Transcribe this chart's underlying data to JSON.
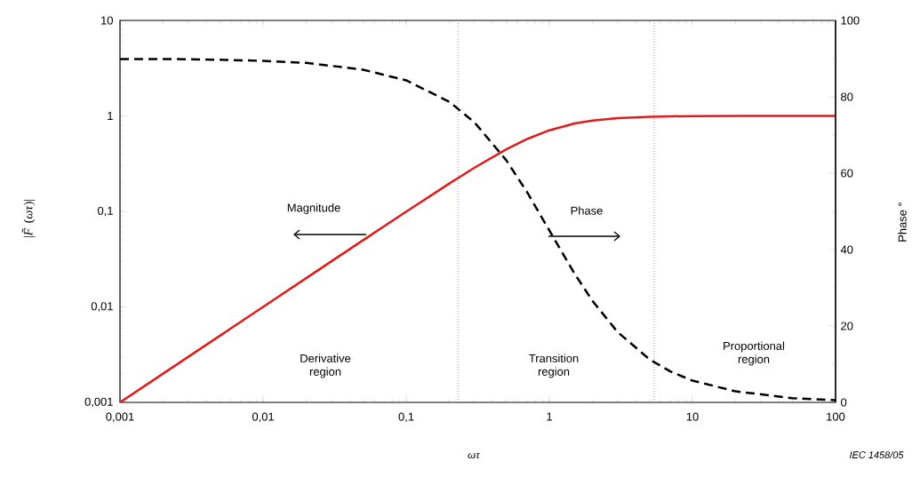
{
  "chart_data": {
    "type": "line",
    "xlabel": "ωτ",
    "ylabel": "|*F̃*(*ωτ*)|",
    "y2label": "Phase °",
    "x": [
      0.001,
      0.002,
      0.005,
      0.01,
      0.02,
      0.05,
      0.1,
      0.2,
      0.3,
      0.5,
      0.7,
      1,
      1.5,
      2,
      3,
      5,
      7,
      10,
      20,
      50,
      100
    ],
    "series": [
      {
        "color": "#e01b1b",
        "line_style": "solid",
        "values": [
          0.001,
          0.002,
          0.005,
          0.01,
          0.02,
          0.05,
          0.0995,
          0.196,
          0.287,
          0.447,
          0.573,
          0.707,
          0.832,
          0.894,
          0.949,
          0.981,
          0.99,
          0.995,
          0.999,
          1,
          1
        ]
      },
      {
        "color": "#000000",
        "line_style": "dashed",
        "axis": "y2",
        "values": [
          89.9,
          89.9,
          89.7,
          89.4,
          88.9,
          87.1,
          84.3,
          78.7,
          73.3,
          63.4,
          55,
          45,
          33.7,
          26.6,
          18.4,
          11.3,
          8.1,
          5.7,
          2.9,
          1.1,
          0.6
        ]
      }
    ],
    "log": "xy",
    "xlim": [
      0.001,
      100
    ],
    "ylim": [
      0.001,
      10
    ],
    "y2lim": [
      0,
      100
    ],
    "xticks": [
      {
        "value": 0.001,
        "label": "0,001"
      },
      {
        "value": 0.01,
        "label": "0,01"
      },
      {
        "value": 0.1,
        "label": "0,1"
      },
      1,
      10,
      100
    ],
    "yticks": [
      {
        "value": 0.001,
        "label": "0,001"
      },
      {
        "value": 0.01,
        "label": "0,01"
      },
      {
        "value": 0.1,
        "label": "0,1"
      },
      1,
      10
    ],
    "y2ticks": [
      0,
      20,
      40,
      60,
      80,
      100
    ],
    "ref_lines": [
      {
        "axis": "x",
        "value": 0.23,
        "color": "#808080",
        "line_style": "dotted"
      },
      {
        "axis": "x",
        "value": 5.4,
        "color": "#808080",
        "line_style": "dotted"
      }
    ],
    "annotations": [
      "Magnitude",
      "Phase",
      "Derivative region",
      "Transition region",
      "Proportional region",
      "IEC  1458/05"
    ],
    "marker": "none",
    "grid": false
  }
}
